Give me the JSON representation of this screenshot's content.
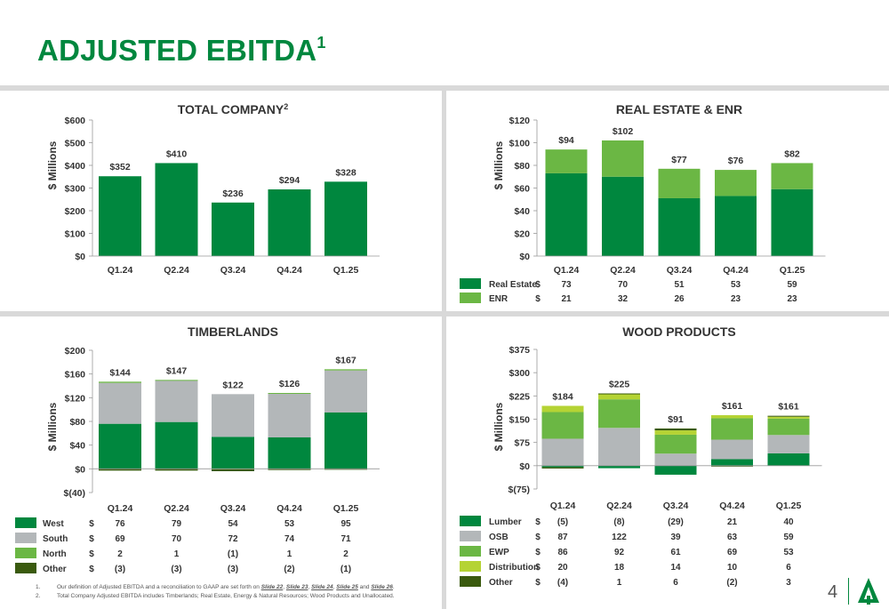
{
  "page": {
    "title": "ADJUSTED EBITDA",
    "title_sup": "1",
    "page_number": "4",
    "accent_color": "#00873e",
    "logo_icon": "tree-icon"
  },
  "footnotes": [
    {
      "num": "1.",
      "text_before": "Our definition of Adjusted EBITDA and a reconciliation to GAAP are set forth on ",
      "links": [
        "Slide 22",
        "Slide 23",
        "Slide 24",
        "Slide 25",
        "Slide 26"
      ],
      "separators": [
        ", ",
        ", ",
        ", ",
        " and "
      ],
      "text_after": "."
    },
    {
      "num": "2.",
      "text": "Total Company Adjusted EBITDA includes Timberlands; Real Estate, Energy & Natural Resources; Wood Products and Unallocated."
    }
  ],
  "chart_data": [
    {
      "id": "total",
      "type": "bar",
      "title": "TOTAL COMPANY",
      "title_sup": "2",
      "ylabel": "$ Millions",
      "ylim": [
        0,
        600
      ],
      "yticks": [
        0,
        100,
        200,
        300,
        400,
        500,
        600
      ],
      "ytick_labels": [
        "$0",
        "$100",
        "$200",
        "$300",
        "$400",
        "$500",
        "$600"
      ],
      "categories": [
        "Q1.24",
        "Q2.24",
        "Q3.24",
        "Q4.24",
        "Q1.25"
      ],
      "series": [
        {
          "values": [
            352,
            410,
            236,
            294,
            328
          ],
          "color": "#00873e"
        }
      ],
      "data_labels": [
        "$352",
        "$410",
        "$236",
        "$294",
        "$328"
      ],
      "legend": []
    },
    {
      "id": "re_enr",
      "type": "bar",
      "stacked": true,
      "title": "REAL ESTATE & ENR",
      "ylabel": "$ Millions",
      "ylim": [
        0,
        120
      ],
      "yticks": [
        0,
        20,
        40,
        60,
        80,
        100,
        120
      ],
      "ytick_labels": [
        "$0",
        "$20",
        "$40",
        "$60",
        "$80",
        "$100",
        "$120"
      ],
      "categories": [
        "Q1.24",
        "Q2.24",
        "Q3.24",
        "Q4.24",
        "Q1.25"
      ],
      "series": [
        {
          "name": "Real Estate",
          "values": [
            73,
            70,
            51,
            53,
            59
          ],
          "display": [
            "73",
            "70",
            "51",
            "53",
            "59"
          ],
          "color": "#00873e"
        },
        {
          "name": "ENR",
          "values": [
            21,
            32,
            26,
            23,
            23
          ],
          "display": [
            "21",
            "32",
            "26",
            "23",
            "23"
          ],
          "color": "#6bb744"
        }
      ],
      "data_labels": [
        "$94",
        "$102",
        "$77",
        "$76",
        "$82"
      ],
      "legend": [
        "Real Estate",
        "ENR"
      ]
    },
    {
      "id": "timber",
      "type": "bar",
      "stacked": true,
      "title": "TIMBERLANDS",
      "ylabel": "$ Millions",
      "ylim": [
        -40,
        200
      ],
      "yticks": [
        -40,
        0,
        40,
        80,
        120,
        160,
        200
      ],
      "ytick_labels": [
        "$(40)",
        "$0",
        "$40",
        "$80",
        "$120",
        "$160",
        "$200"
      ],
      "categories": [
        "Q1.24",
        "Q2.24",
        "Q3.24",
        "Q4.24",
        "Q1.25"
      ],
      "series": [
        {
          "name": "West",
          "values": [
            76,
            79,
            54,
            53,
            95
          ],
          "display": [
            "76",
            "79",
            "54",
            "53",
            "95"
          ],
          "color": "#00873e"
        },
        {
          "name": "South",
          "values": [
            69,
            70,
            72,
            74,
            71
          ],
          "display": [
            "69",
            "70",
            "72",
            "74",
            "71"
          ],
          "color": "#b3b7b9"
        },
        {
          "name": "North",
          "values": [
            2,
            1,
            -1,
            1,
            2
          ],
          "display": [
            "2",
            "1",
            "(1)",
            "1",
            "2"
          ],
          "color": "#6bb744"
        },
        {
          "name": "Other",
          "values": [
            -3,
            -3,
            -3,
            -2,
            -1
          ],
          "display": [
            "(3)",
            "(3)",
            "(3)",
            "(2)",
            "(1)"
          ],
          "color": "#3a5a0e"
        }
      ],
      "data_labels": [
        "$144",
        "$147",
        "$122",
        "$126",
        "$167"
      ],
      "legend": [
        "West",
        "South",
        "North",
        "Other"
      ]
    },
    {
      "id": "wood",
      "type": "bar",
      "stacked": true,
      "title": "WOOD PRODUCTS",
      "ylabel": "$ Millions",
      "ylim": [
        -75,
        375
      ],
      "yticks": [
        -75,
        0,
        75,
        150,
        225,
        300,
        375
      ],
      "ytick_labels": [
        "$(75)",
        "$0",
        "$75",
        "$150",
        "$225",
        "$300",
        "$375"
      ],
      "categories": [
        "Q1.24",
        "Q2.24",
        "Q3.24",
        "Q4.24",
        "Q1.25"
      ],
      "series": [
        {
          "name": "Lumber",
          "values": [
            -5,
            -8,
            -29,
            21,
            40
          ],
          "display": [
            "(5)",
            "(8)",
            "(29)",
            "21",
            "40"
          ],
          "color": "#00873e"
        },
        {
          "name": "OSB",
          "values": [
            87,
            122,
            39,
            63,
            59
          ],
          "display": [
            "87",
            "122",
            "39",
            "63",
            "59"
          ],
          "color": "#b3b7b9"
        },
        {
          "name": "EWP",
          "values": [
            86,
            92,
            61,
            69,
            53
          ],
          "display": [
            "86",
            "92",
            "61",
            "69",
            "53"
          ],
          "color": "#6bb744"
        },
        {
          "name": "Distribution",
          "values": [
            20,
            18,
            14,
            10,
            6
          ],
          "display": [
            "20",
            "18",
            "14",
            "10",
            "6"
          ],
          "color": "#b5d334"
        },
        {
          "name": "Other",
          "values": [
            -4,
            1,
            6,
            -2,
            3
          ],
          "display": [
            "(4)",
            "1",
            "6",
            "(2)",
            "3"
          ],
          "color": "#3a5a0e"
        }
      ],
      "data_labels": [
        "$184",
        "$225",
        "$91",
        "$161",
        "$161"
      ],
      "legend": [
        "Lumber",
        "OSB",
        "EWP",
        "Distribution",
        "Other"
      ]
    }
  ]
}
